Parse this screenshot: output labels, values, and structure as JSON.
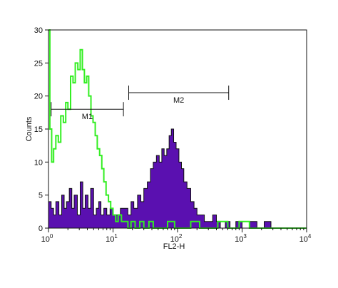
{
  "chart_data": {
    "type": "histogram",
    "xlabel": "FL2-H",
    "ylabel": "Counts",
    "x_scale": "log",
    "xlim": [
      1,
      10000
    ],
    "ylim": [
      0,
      30
    ],
    "x_ticks": [
      {
        "base": "10",
        "exp": "0"
      },
      {
        "base": "10",
        "exp": "1"
      },
      {
        "base": "10",
        "exp": "2"
      },
      {
        "base": "10",
        "exp": "3"
      },
      {
        "base": "10",
        "exp": "4"
      }
    ],
    "y_ticks": [
      "0",
      "5",
      "10",
      "15",
      "20",
      "25",
      "30"
    ],
    "colors": {
      "filled": "#5a10b0",
      "outline": "#111111",
      "green": "#33ee22"
    },
    "gates": [
      {
        "label": "M1",
        "from": 1.1,
        "to": 14.5,
        "y": 18
      },
      {
        "label": "M2",
        "from": 17.5,
        "to": 620,
        "y": 20.5
      }
    ],
    "series": [
      {
        "style": "filled-purple",
        "points": [
          [
            1.0,
            4
          ],
          [
            1.1,
            3
          ],
          [
            1.2,
            2
          ],
          [
            1.3,
            4
          ],
          [
            1.45,
            2
          ],
          [
            1.6,
            5
          ],
          [
            1.75,
            3
          ],
          [
            1.9,
            4
          ],
          [
            2.1,
            6
          ],
          [
            2.3,
            3
          ],
          [
            2.5,
            5
          ],
          [
            2.8,
            2
          ],
          [
            3.1,
            7
          ],
          [
            3.4,
            3
          ],
          [
            3.7,
            5
          ],
          [
            4.1,
            3
          ],
          [
            4.5,
            6
          ],
          [
            5.0,
            2
          ],
          [
            5.5,
            3
          ],
          [
            6.0,
            4
          ],
          [
            6.5,
            2
          ],
          [
            7.2,
            3
          ],
          [
            8.0,
            2
          ],
          [
            9.0,
            3
          ],
          [
            10.0,
            2
          ],
          [
            11.5,
            2
          ],
          [
            13.0,
            3
          ],
          [
            15.0,
            3
          ],
          [
            17.0,
            2
          ],
          [
            19.0,
            4
          ],
          [
            21.0,
            3
          ],
          [
            24.0,
            5
          ],
          [
            27.0,
            4
          ],
          [
            30.0,
            6
          ],
          [
            34.0,
            7
          ],
          [
            38.0,
            9
          ],
          [
            42.0,
            10
          ],
          [
            47.0,
            11
          ],
          [
            52.0,
            10
          ],
          [
            57.0,
            12
          ],
          [
            62.0,
            11
          ],
          [
            68.0,
            12
          ],
          [
            74.0,
            14
          ],
          [
            80.0,
            15
          ],
          [
            87.0,
            13
          ],
          [
            95.0,
            12
          ],
          [
            105.0,
            10
          ],
          [
            115.0,
            9
          ],
          [
            125.0,
            7
          ],
          [
            140.0,
            6
          ],
          [
            160.0,
            4
          ],
          [
            180.0,
            3
          ],
          [
            200.0,
            2
          ],
          [
            230.0,
            2
          ],
          [
            260.0,
            1
          ],
          [
            300.0,
            1
          ],
          [
            350.0,
            2
          ],
          [
            400.0,
            1
          ],
          [
            460.0,
            0
          ],
          [
            550.0,
            1
          ],
          [
            650.0,
            0
          ],
          [
            800.0,
            1
          ],
          [
            1000.0,
            0
          ],
          [
            1300.0,
            1
          ],
          [
            1700.0,
            0
          ],
          [
            2200.0,
            1
          ],
          [
            2800.0,
            0
          ]
        ]
      },
      {
        "style": "green-outline",
        "points": [
          [
            1.0,
            30
          ],
          [
            1.05,
            15
          ],
          [
            1.12,
            10
          ],
          [
            1.2,
            12
          ],
          [
            1.3,
            14
          ],
          [
            1.42,
            13
          ],
          [
            1.55,
            17
          ],
          [
            1.7,
            16
          ],
          [
            1.85,
            19
          ],
          [
            2.0,
            18
          ],
          [
            2.2,
            23
          ],
          [
            2.4,
            22
          ],
          [
            2.6,
            25
          ],
          [
            2.85,
            24
          ],
          [
            3.1,
            27
          ],
          [
            3.35,
            24
          ],
          [
            3.6,
            22
          ],
          [
            3.9,
            23
          ],
          [
            4.2,
            20
          ],
          [
            4.55,
            17
          ],
          [
            4.9,
            16
          ],
          [
            5.3,
            14
          ],
          [
            5.7,
            12
          ],
          [
            6.2,
            11
          ],
          [
            6.7,
            9
          ],
          [
            7.2,
            7
          ],
          [
            7.8,
            5
          ],
          [
            8.5,
            4
          ],
          [
            9.2,
            3
          ],
          [
            10.0,
            2
          ],
          [
            11.0,
            1
          ],
          [
            12.0,
            2
          ],
          [
            13.5,
            1
          ],
          [
            15.0,
            1
          ],
          [
            17.0,
            0
          ],
          [
            19.0,
            1
          ],
          [
            22.0,
            0
          ],
          [
            26.0,
            1
          ],
          [
            30.0,
            0
          ],
          [
            36.0,
            1
          ],
          [
            42.0,
            0
          ],
          [
            55.0,
            0
          ],
          [
            70.0,
            1
          ],
          [
            90.0,
            0
          ],
          [
            120.0,
            0
          ],
          [
            160.0,
            1
          ],
          [
            220.0,
            0
          ],
          [
            300.0,
            0
          ],
          [
            420.0,
            1
          ],
          [
            600.0,
            0
          ],
          [
            900.0,
            1
          ],
          [
            1300.0,
            0
          ],
          [
            2000.0,
            0
          ],
          [
            4000.0,
            0
          ],
          [
            10000.0,
            0
          ]
        ]
      }
    ]
  }
}
